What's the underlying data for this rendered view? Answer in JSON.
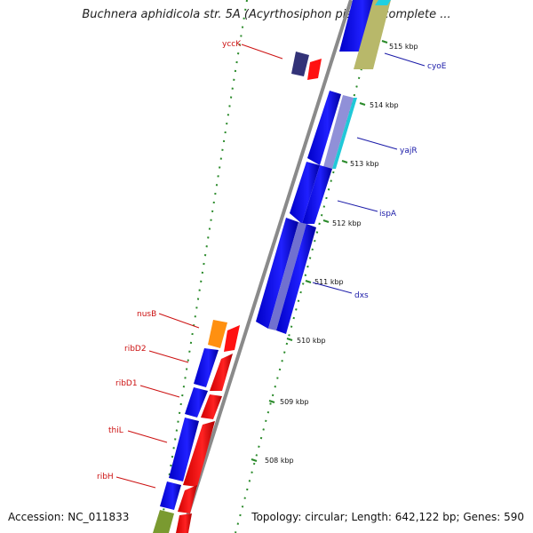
{
  "title": "Buchnera aphidicola str. 5A (Acyrthosiphon pisum), complete ...",
  "footer": {
    "accession": "Accession: NC_011833",
    "summary": "Topology: circular; Length: 642,122 bp; Genes: 590"
  },
  "colors": {
    "backbone": "#888888",
    "tick": "#2a8a2a",
    "forward_gene": "#1010e0",
    "reverse_gene": "#ee1111",
    "forward_label": "#1a1aa8",
    "reverse_label": "#cc1111"
  },
  "ticks": [
    "515 kbp",
    "514 kbp",
    "513 kbp",
    "512 kbp",
    "511 kbp",
    "510 kbp",
    "509 kbp",
    "508 kbp"
  ],
  "forward_labels": [
    "cyoE",
    "yajR",
    "ispA",
    "dxs"
  ],
  "reverse_labels": [
    "yccK",
    "nusB",
    "ribD2",
    "ribD1",
    "thiL",
    "ribH"
  ]
}
